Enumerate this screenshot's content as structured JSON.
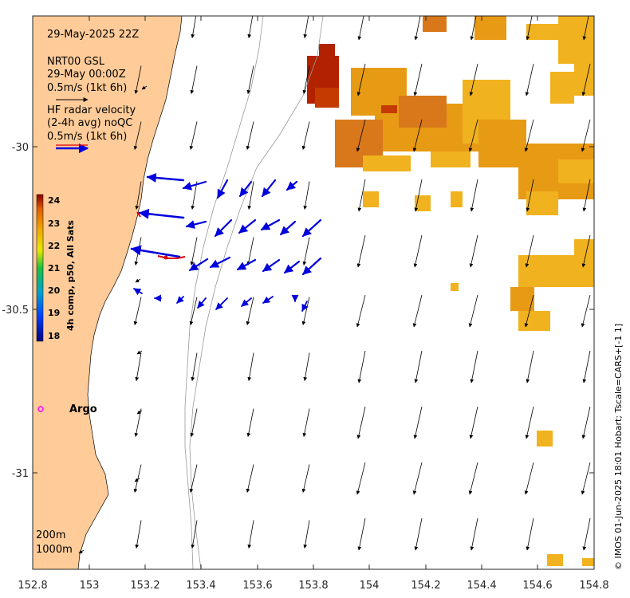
{
  "info": {
    "timestamp": "29-May-2025 22Z",
    "model_name": "NRT00 GSL",
    "model_time": "29-May 00:00Z",
    "model_scale": "0.5m/s (1kt 6h)",
    "radar_line1": "HF radar velocity",
    "radar_line2": "(2-4h avg) noQC",
    "radar_scale": "0.5m/s (1kt 6h)"
  },
  "colorbar": {
    "title": "4h comp, p50, All Sats",
    "ticks": [
      "24",
      "23",
      "22",
      "21",
      "20",
      "19",
      "18"
    ]
  },
  "argo_label": "Argo",
  "isobaths": [
    "200m",
    "1000m"
  ],
  "credit": "© IMOS 01-Jun-2025 18:01 Hobart; Tscale=CARS+[-1 1]",
  "axes": {
    "x_ticks": [
      "152.8",
      "153",
      "153.2",
      "153.4",
      "153.6",
      "153.8",
      "154",
      "154.2",
      "154.4",
      "154.6",
      "154.8"
    ],
    "y_ticks": [
      "-30",
      "-30.5",
      "-31"
    ]
  },
  "colors": {
    "land": "#ffcc99",
    "sst_warm": "#d98c00",
    "sst_hot": "#b22200",
    "radar_arrow": "#0000dd",
    "model_arrow": "#000000",
    "argo": "#ff00ff"
  },
  "chart_data": {
    "type": "map",
    "x_range": [
      152.8,
      154.8
    ],
    "y_range": [
      -31.25,
      -29.6
    ],
    "x_label": "",
    "y_label": "",
    "colorbar_range": [
      18,
      24
    ]
  }
}
